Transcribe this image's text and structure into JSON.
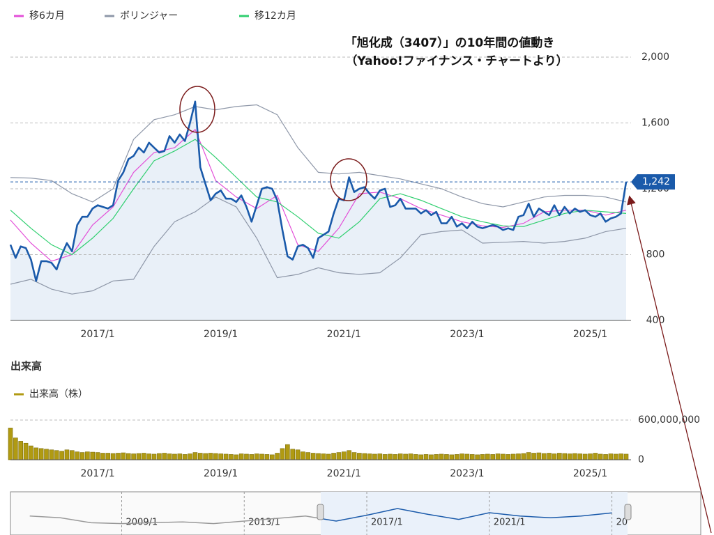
{
  "chart_data": {
    "type": "line",
    "annotations": [
      "「旭化成（3407）」の10年間の値動き",
      "（Yahoo!ファイナンス・チャートより）"
    ],
    "categories": [
      "2015/8",
      "2015/9",
      "2015/10",
      "2015/11",
      "2015/12",
      "2016/1",
      "2016/2",
      "2016/3",
      "2016/4",
      "2016/5",
      "2016/6",
      "2016/7",
      "2016/8",
      "2016/9",
      "2016/10",
      "2016/11",
      "2016/12",
      "2017/1",
      "2017/2",
      "2017/3",
      "2017/4",
      "2017/5",
      "2017/6",
      "2017/7",
      "2017/8",
      "2017/9",
      "2017/10",
      "2017/11",
      "2017/12",
      "2018/1",
      "2018/2",
      "2018/3",
      "2018/4",
      "2018/5",
      "2018/6",
      "2018/7",
      "2018/8",
      "2018/9",
      "2018/10",
      "2018/11",
      "2018/12",
      "2019/1",
      "2019/2",
      "2019/3",
      "2019/4",
      "2019/5",
      "2019/6",
      "2019/7",
      "2019/8",
      "2019/9",
      "2019/10",
      "2019/11",
      "2019/12",
      "2020/1",
      "2020/2",
      "2020/3",
      "2020/4",
      "2020/5",
      "2020/6",
      "2020/7",
      "2020/8",
      "2020/9",
      "2020/10",
      "2020/11",
      "2020/12",
      "2021/1",
      "2021/2",
      "2021/3",
      "2021/4",
      "2021/5",
      "2021/6",
      "2021/7",
      "2021/8",
      "2021/9",
      "2021/10",
      "2021/11",
      "2021/12",
      "2022/1",
      "2022/2",
      "2022/3",
      "2022/4",
      "2022/5",
      "2022/6",
      "2022/7",
      "2022/8",
      "2022/9",
      "2022/10",
      "2022/11",
      "2022/12",
      "2023/1",
      "2023/2",
      "2023/3",
      "2023/4",
      "2023/5",
      "2023/6",
      "2023/7",
      "2023/8",
      "2023/9",
      "2023/10",
      "2023/11",
      "2023/12",
      "2024/1",
      "2024/2",
      "2024/3",
      "2024/4",
      "2024/5",
      "2024/6",
      "2024/7",
      "2024/8",
      "2024/9",
      "2024/10",
      "2024/11",
      "2024/12",
      "2025/1",
      "2025/2",
      "2025/3",
      "2025/4",
      "2025/5",
      "2025/6",
      "2025/7",
      "2025/8"
    ],
    "xticks": [
      "2017/1",
      "2019/1",
      "2021/1",
      "2023/1",
      "2025/1"
    ],
    "ylim": [
      400,
      2000
    ],
    "yticks": [
      400,
      800,
      {
        "value": 1200,
        "label": "1,200"
      },
      {
        "value": 1600,
        "label": "1,600"
      },
      {
        "value": 2000,
        "label": "2,000"
      }
    ],
    "grid": true,
    "price": {
      "color": "#1a5aaa",
      "fill": "#e9f0f8",
      "values": [
        860,
        780,
        850,
        840,
        770,
        640,
        760,
        760,
        750,
        710,
        800,
        870,
        820,
        980,
        1030,
        1030,
        1080,
        1100,
        1090,
        1080,
        1100,
        1250,
        1300,
        1380,
        1400,
        1450,
        1420,
        1480,
        1450,
        1420,
        1430,
        1520,
        1480,
        1530,
        1490,
        1600,
        1730,
        1330,
        1230,
        1130,
        1170,
        1190,
        1140,
        1140,
        1120,
        1160,
        1090,
        1000,
        1100,
        1200,
        1210,
        1200,
        1130,
        950,
        790,
        770,
        850,
        860,
        840,
        780,
        900,
        920,
        940,
        1050,
        1140,
        1130,
        1270,
        1180,
        1200,
        1210,
        1170,
        1140,
        1190,
        1200,
        1090,
        1100,
        1140,
        1080,
        1080,
        1080,
        1050,
        1070,
        1040,
        1060,
        990,
        990,
        1030,
        970,
        990,
        960,
        1000,
        970,
        960,
        970,
        980,
        970,
        950,
        960,
        950,
        1030,
        1040,
        1110,
        1030,
        1080,
        1060,
        1040,
        1100,
        1040,
        1090,
        1050,
        1080,
        1060,
        1070,
        1040,
        1030,
        1050,
        1000,
        1020,
        1030,
        1050,
        1242
      ],
      "last": {
        "value": 1242,
        "label": "1,242"
      }
    },
    "series": [
      {
        "name": "移6カ月",
        "color": "#e34fd8",
        "x": [
          "2015/8",
          "2015/12",
          "2016/4",
          "2016/8",
          "2016/12",
          "2017/4",
          "2017/8",
          "2017/12",
          "2018/4",
          "2018/8",
          "2018/12",
          "2019/4",
          "2019/8",
          "2019/12",
          "2020/4",
          "2020/8",
          "2020/12",
          "2021/4",
          "2021/8",
          "2021/12",
          "2022/4",
          "2022/8",
          "2022/12",
          "2023/4",
          "2023/8",
          "2023/12",
          "2024/4",
          "2024/8",
          "2024/12",
          "2025/4",
          "2025/8"
        ],
        "values": [
          1010,
          870,
          760,
          800,
          980,
          1090,
          1300,
          1420,
          1450,
          1560,
          1250,
          1150,
          1080,
          1160,
          860,
          820,
          960,
          1170,
          1180,
          1140,
          1080,
          1040,
          1000,
          975,
          965,
          990,
          1060,
          1070,
          1070,
          1040,
          1070
        ]
      },
      {
        "name": "ボリンジャー",
        "color": "#8e97a8",
        "x": [
          "2015/8",
          "2015/12",
          "2016/4",
          "2016/8",
          "2016/12",
          "2017/4",
          "2017/8",
          "2017/12",
          "2018/4",
          "2018/8",
          "2018/12",
          "2019/4",
          "2019/8",
          "2019/12",
          "2020/4",
          "2020/8",
          "2020/12",
          "2021/4",
          "2021/8",
          "2021/12",
          "2022/4",
          "2022/8",
          "2022/12",
          "2023/4",
          "2023/8",
          "2023/12",
          "2024/4",
          "2024/8",
          "2024/12",
          "2025/4",
          "2025/8"
        ],
        "values": [
          1268,
          1265,
          1250,
          1170,
          1120,
          1200,
          1500,
          1620,
          1650,
          1700,
          1680,
          1700,
          1710,
          1650,
          1450,
          1300,
          1290,
          1300,
          1280,
          1260,
          1230,
          1200,
          1150,
          1110,
          1090,
          1120,
          1150,
          1160,
          1160,
          1150,
          1120
        ],
        "lower": [
          620,
          650,
          590,
          560,
          580,
          640,
          650,
          850,
          1000,
          1060,
          1150,
          1090,
          900,
          660,
          680,
          720,
          690,
          680,
          690,
          780,
          920,
          940,
          950,
          870,
          875,
          880,
          870,
          880,
          900,
          940,
          960
        ]
      },
      {
        "name": "移12カ月",
        "color": "#2fcf6f",
        "x": [
          "2015/8",
          "2015/12",
          "2016/4",
          "2016/8",
          "2016/12",
          "2017/4",
          "2017/8",
          "2017/12",
          "2018/4",
          "2018/8",
          "2018/12",
          "2019/4",
          "2019/8",
          "2019/12",
          "2020/4",
          "2020/8",
          "2020/12",
          "2021/4",
          "2021/8",
          "2021/12",
          "2022/4",
          "2022/8",
          "2022/12",
          "2023/4",
          "2023/8",
          "2023/12",
          "2024/4",
          "2024/8",
          "2024/12",
          "2025/4",
          "2025/8"
        ],
        "values": [
          1070,
          960,
          860,
          800,
          900,
          1020,
          1200,
          1370,
          1430,
          1500,
          1390,
          1270,
          1150,
          1120,
          1030,
          930,
          900,
          1000,
          1140,
          1170,
          1130,
          1080,
          1030,
          1000,
          975,
          970,
          1010,
          1050,
          1070,
          1060,
          1050
        ]
      }
    ],
    "volume": {
      "title": "出来高",
      "name": "出来高（株）",
      "color": "#b09a12",
      "ylim": [
        0,
        600000000
      ],
      "yticks": [
        0,
        {
          "value": 600000000,
          "label": "600,000,000"
        }
      ],
      "values": [
        480000000,
        330000000,
        280000000,
        250000000,
        210000000,
        180000000,
        170000000,
        160000000,
        150000000,
        140000000,
        130000000,
        150000000,
        140000000,
        120000000,
        110000000,
        120000000,
        115000000,
        110000000,
        100000000,
        100000000,
        95000000,
        100000000,
        105000000,
        95000000,
        90000000,
        95000000,
        100000000,
        90000000,
        85000000,
        95000000,
        100000000,
        90000000,
        85000000,
        90000000,
        80000000,
        90000000,
        110000000,
        100000000,
        95000000,
        100000000,
        95000000,
        90000000,
        85000000,
        80000000,
        75000000,
        90000000,
        85000000,
        80000000,
        90000000,
        85000000,
        80000000,
        75000000,
        100000000,
        170000000,
        230000000,
        160000000,
        150000000,
        120000000,
        110000000,
        100000000,
        95000000,
        90000000,
        85000000,
        100000000,
        110000000,
        120000000,
        140000000,
        110000000,
        100000000,
        95000000,
        90000000,
        85000000,
        90000000,
        80000000,
        85000000,
        80000000,
        90000000,
        85000000,
        90000000,
        80000000,
        75000000,
        80000000,
        75000000,
        80000000,
        85000000,
        80000000,
        75000000,
        80000000,
        90000000,
        85000000,
        80000000,
        75000000,
        80000000,
        85000000,
        80000000,
        90000000,
        85000000,
        80000000,
        85000000,
        90000000,
        95000000,
        110000000,
        100000000,
        105000000,
        95000000,
        100000000,
        90000000,
        100000000,
        95000000,
        90000000,
        95000000,
        90000000,
        85000000,
        90000000,
        100000000,
        85000000,
        80000000,
        90000000,
        85000000,
        90000000,
        85000000
      ]
    },
    "navigator": {
      "xlim": [
        2005.37,
        2027.9
      ],
      "ylim": [
        0,
        2500
      ],
      "xticks": [
        {
          "value": 2009,
          "label": "2009/1"
        },
        {
          "value": 2013,
          "label": "2013/1"
        },
        {
          "value": 2017,
          "label": "2017/1"
        },
        {
          "value": 2021,
          "label": "2021/1"
        },
        {
          "value": 2025,
          "label": "20"
        }
      ],
      "x": [
        2006,
        2007,
        2008,
        2009,
        2010,
        2011,
        2012,
        2013,
        2014,
        2015,
        2016,
        2017,
        2018,
        2019,
        2020,
        2021,
        2022,
        2023,
        2024,
        2025
      ],
      "values": [
        1050,
        950,
        650,
        600,
        650,
        700,
        600,
        750,
        900,
        1050,
        750,
        1100,
        1500,
        1150,
        850,
        1250,
        1050,
        950,
        1050,
        1242
      ]
    }
  }
}
